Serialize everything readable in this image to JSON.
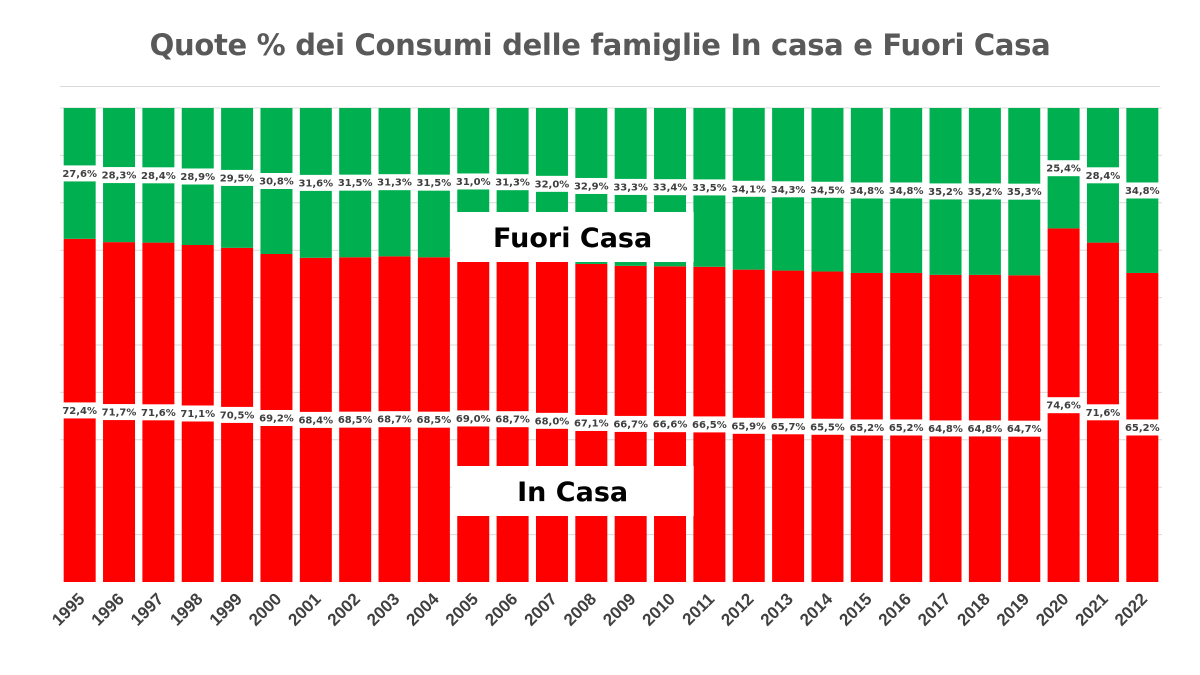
{
  "chart_data": {
    "type": "bar",
    "stacked": true,
    "percent_stacked": true,
    "title": "Quote % dei Consumi delle famiglie In casa e Fuori Casa",
    "categories": [
      "1995",
      "1996",
      "1997",
      "1998",
      "1999",
      "2000",
      "2001",
      "2002",
      "2003",
      "2004",
      "2005",
      "2006",
      "2007",
      "2008",
      "2009",
      "2010",
      "2011",
      "2012",
      "2013",
      "2014",
      "2015",
      "2016",
      "2017",
      "2018",
      "2019",
      "2020",
      "2021",
      "2022"
    ],
    "series": [
      {
        "name": "In Casa",
        "color": "#ff0000",
        "values": [
          72.4,
          71.7,
          71.6,
          71.1,
          70.5,
          69.2,
          68.4,
          68.5,
          68.7,
          68.5,
          69.0,
          68.7,
          68.0,
          67.1,
          66.7,
          66.6,
          66.5,
          65.9,
          65.7,
          65.5,
          65.2,
          65.2,
          64.8,
          64.8,
          64.7,
          74.6,
          71.6,
          65.2
        ],
        "labels": [
          "72,4%",
          "71,7%",
          "71,6%",
          "71,1%",
          "70,5%",
          "69,2%",
          "68,4%",
          "68,5%",
          "68,7%",
          "68,5%",
          "69,0%",
          "68,7%",
          "68,0%",
          "67,1%",
          "66,7%",
          "66,6%",
          "66,5%",
          "65,9%",
          "65,7%",
          "65,5%",
          "65,2%",
          "65,2%",
          "64,8%",
          "64,8%",
          "64,7%",
          "74,6%",
          "71,6%",
          "65,2%"
        ]
      },
      {
        "name": "Fuori Casa",
        "color": "#00b050",
        "values": [
          27.6,
          28.3,
          28.4,
          28.9,
          29.5,
          30.8,
          31.6,
          31.5,
          31.3,
          31.5,
          31.0,
          31.3,
          32.0,
          32.9,
          33.3,
          33.4,
          33.5,
          34.1,
          34.3,
          34.5,
          34.8,
          34.8,
          35.2,
          35.2,
          35.3,
          25.4,
          28.4,
          34.8
        ],
        "labels": [
          "27,6%",
          "28,3%",
          "28,4%",
          "28,9%",
          "29,5%",
          "30,8%",
          "31,6%",
          "31,5%",
          "31,3%",
          "31,5%",
          "31,0%",
          "31,3%",
          "32,0%",
          "32,9%",
          "33,3%",
          "33,4%",
          "33,5%",
          "34,1%",
          "34,3%",
          "34,5%",
          "34,8%",
          "34,8%",
          "35,2%",
          "35,2%",
          "35,3%",
          "25,4%",
          "28,4%",
          "34,8%"
        ]
      }
    ],
    "ylim": [
      0,
      100
    ],
    "grid": true,
    "annotations": [
      "Fuori Casa",
      "In Casa"
    ]
  }
}
